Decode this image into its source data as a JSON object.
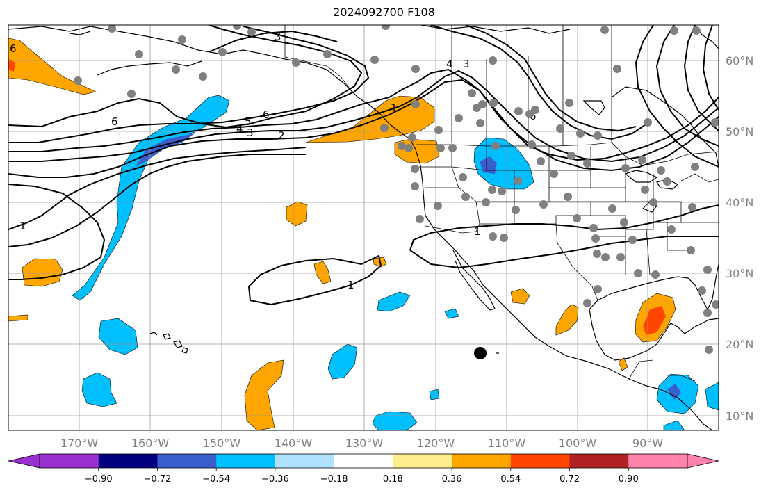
{
  "title": "2024092700 F108",
  "map": {
    "lon_labels": [
      "170°W",
      "160°W",
      "150°W",
      "140°W",
      "130°W",
      "120°W",
      "110°W",
      "100°W",
      "90°W"
    ],
    "lat_labels": [
      "60°N",
      "50°N",
      "40°N",
      "30°N",
      "20°N",
      "10°N"
    ],
    "contour_labels": [
      "3",
      "6",
      "5",
      "4",
      "3",
      "2",
      "6",
      "1",
      "1",
      "1",
      "1",
      "4",
      "3",
      "6",
      "1"
    ],
    "fill_colors": {
      "neg_strong": "#3a5fcd",
      "neg_mid": "#00bfff",
      "pos_mid": "#ffa500",
      "pos_strong": "#ff4500"
    },
    "station_color": "#808080",
    "marker_color": "#000000"
  },
  "colorbar": {
    "colors": [
      "#9b30d0",
      "#000080",
      "#3a5fcd",
      "#00bfff",
      "#b0e2ff",
      "#ffffff",
      "#ffec8b",
      "#ffa500",
      "#ff4500",
      "#b22222",
      "#ff82ab"
    ],
    "tick_labels": [
      "−0.90",
      "−0.72",
      "−0.54",
      "−0.36",
      "−0.18",
      "0.18",
      "0.36",
      "0.54",
      "0.72",
      "0.90"
    ]
  }
}
